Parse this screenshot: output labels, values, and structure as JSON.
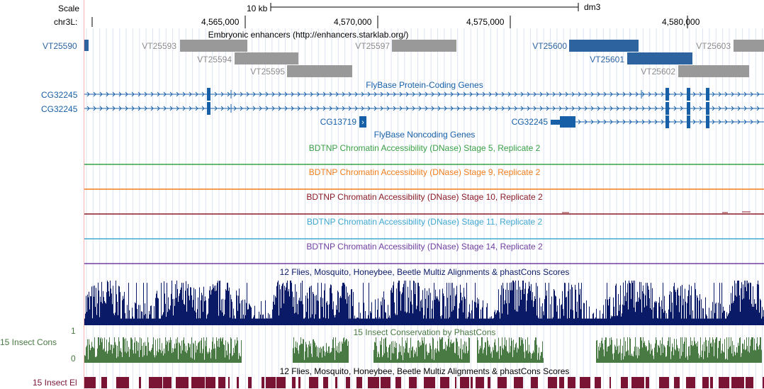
{
  "ruler": {
    "scale_label": "Scale",
    "chrom_label": "chr3L:",
    "scale_text": "10 kb",
    "assembly": "dm3",
    "ticks": [
      "4,565,000",
      "4,570,000",
      "4,575,000",
      "4,580,000"
    ]
  },
  "enhancers": {
    "title": "Embryonic enhancers (http://enhancers.starklab.org/)",
    "items": [
      "VT25590",
      "VT25593",
      "VT25594",
      "VT25595",
      "VT25597",
      "VT25600",
      "VT25601",
      "VT25602",
      "VT25603"
    ]
  },
  "genes": {
    "title": "FlyBase Protein-Coding Genes",
    "rows": [
      "CG32245",
      "CG32245"
    ],
    "noncoding_title": "FlyBase Noncoding Genes",
    "noncoding_items": [
      "CG13719",
      "CG32245"
    ]
  },
  "dnase": [
    {
      "title": "BDTNP Chromatin Accessibility (DNase) Stage 5, Replicate 2",
      "color": "#3aa046"
    },
    {
      "title": "BDTNP Chromatin Accessibility (DNase) Stage 9, Replicate 2",
      "color": "#f07f1e"
    },
    {
      "title": "BDTNP Chromatin Accessibility (DNase) Stage 10, Replicate 2",
      "color": "#8b1b26"
    },
    {
      "title": "BDTNP Chromatin Accessibility (DNase) Stage 11, Replicate 2",
      "color": "#3ea8d0"
    },
    {
      "title": "BDTNP Chromatin Accessibility (DNase) Stage 14, Replicate 2",
      "color": "#7040a0"
    }
  ],
  "multiz": {
    "title": "12 Flies, Mosquito, Honeybee, Beetle Multiz Alignments & phastCons Scores",
    "color": "#0b1a66"
  },
  "phastcons": {
    "title": "15 Insect Conservation by PhastCons",
    "label": "15 Insect Cons",
    "max": "1",
    "min": "0",
    "color": "#4a7a44"
  },
  "elements": {
    "title": "12 Flies, Mosquito, Honeybee, Beetle Multiz Alignments & phastCons Scores",
    "label": "15 Insect El",
    "color": "#7a1435"
  },
  "colors": {
    "gene": "#1760a8",
    "enhancer_active": "#2d64a0",
    "enhancer_inactive": "#999999",
    "enhancer_label_inactive": "#8c8c8c",
    "grid": "#d4dcf0"
  }
}
